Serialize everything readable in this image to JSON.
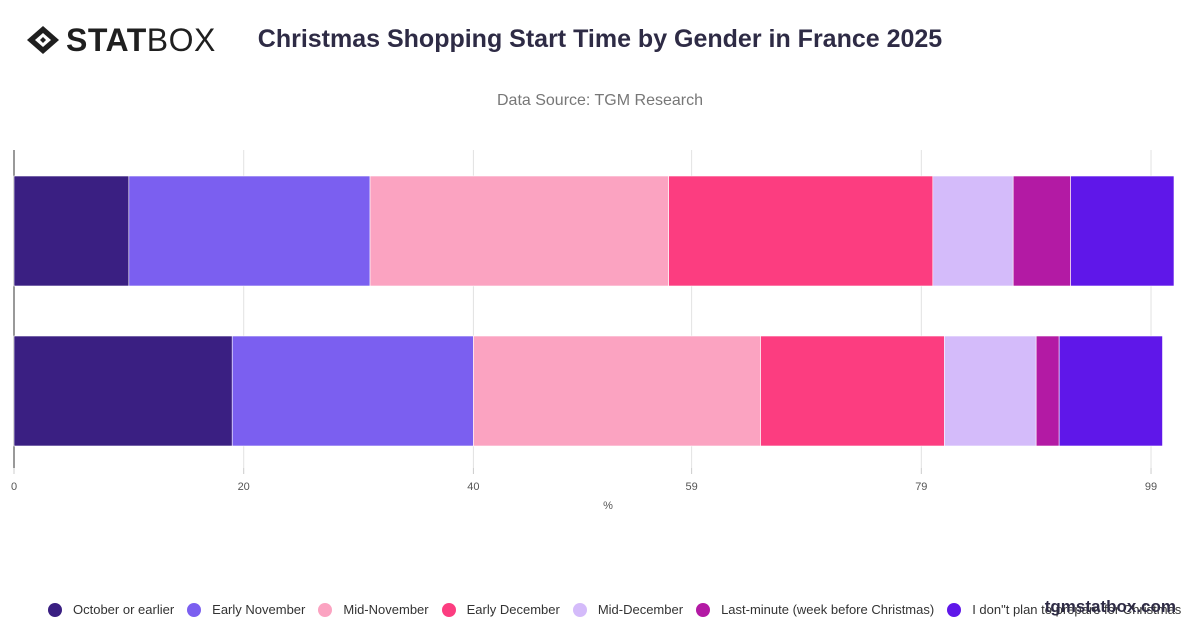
{
  "brand": {
    "logo_bold": "STAT",
    "logo_light": "BOX",
    "watermark": "tgmstatbox.com"
  },
  "colors": {
    "October or earlier": "#3a1f82",
    "Early November": "#7b5ff0",
    "Mid-November": "#fba3c1",
    "Early December": "#fc3d80",
    "Mid-December": "#d4bbfa",
    "Last-minute (week before Christmas)": "#b31aa4",
    "I don\"t plan to prepare for Christmas": "#5f17e9"
  },
  "chart_data": {
    "type": "bar",
    "orientation": "horizontal",
    "stacked": true,
    "title": "Christmas Shopping Start Time by Gender in France 2025",
    "subtitle": "Data Source: TGM Research",
    "xlabel": "%",
    "ylabel": "",
    "xlim": [
      0,
      101
    ],
    "xticks": [
      0,
      20,
      40,
      59,
      79,
      99
    ],
    "grid": true,
    "legend_position": "bottom",
    "categories": [
      "",
      ""
    ],
    "series": [
      {
        "name": "October or earlier",
        "values": [
          10,
          19
        ]
      },
      {
        "name": "Early November",
        "values": [
          21,
          21
        ]
      },
      {
        "name": "Mid-November",
        "values": [
          26,
          25
        ]
      },
      {
        "name": "Early December",
        "values": [
          23,
          16
        ]
      },
      {
        "name": "Mid-December",
        "values": [
          7,
          8
        ]
      },
      {
        "name": "Last-minute (week before Christmas)",
        "values": [
          5,
          2
        ]
      },
      {
        "name": "I don\"t plan to prepare for Christmas",
        "values": [
          9,
          9
        ]
      }
    ]
  }
}
